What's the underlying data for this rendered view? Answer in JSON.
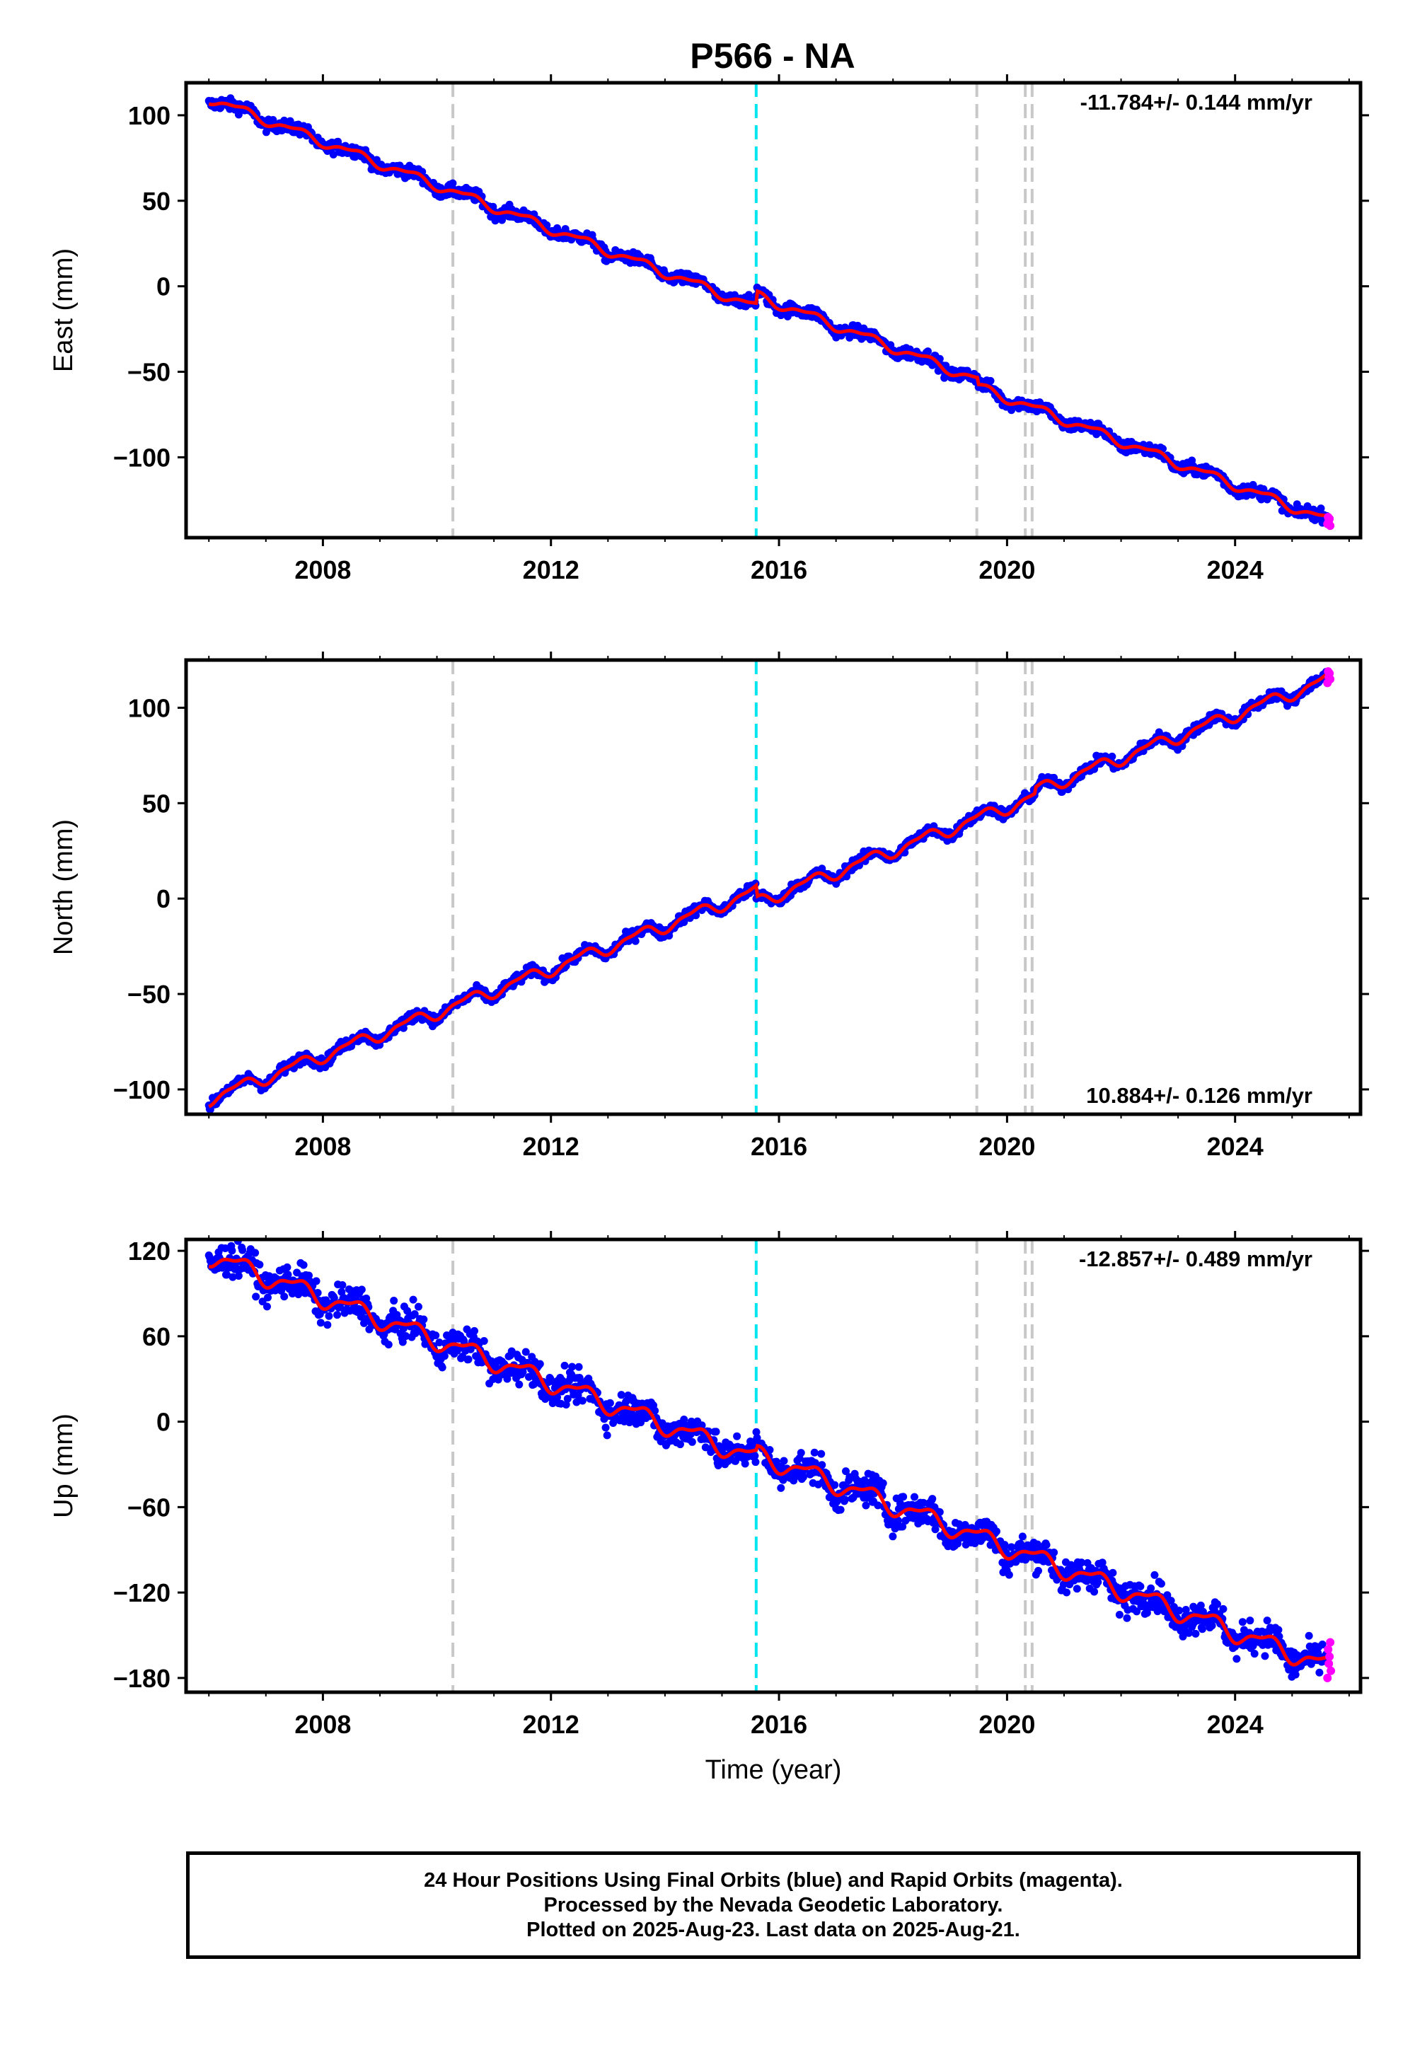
{
  "title": "P566 - NA",
  "colors": {
    "final_orbits": "#0000ff",
    "rapid_orbits": "#ff00ff",
    "model_fit": "#ff0000",
    "equipment_change": "#c8c8c8",
    "earthquake": "#00e5ee",
    "frame": "#000000"
  },
  "chart_data": [
    {
      "type": "scatter",
      "name": "East",
      "ylabel": "East (mm)",
      "xlabel": "",
      "xlim": [
        2005.6,
        2026.2
      ],
      "ylim": [
        -147,
        119
      ],
      "yticks": [
        100,
        50,
        0,
        -50,
        -100
      ],
      "xticks": [
        2008,
        2012,
        2016,
        2020,
        2024
      ],
      "rate_label": "-11.784+/- 0.144 mm/yr",
      "rate_position": "top-right",
      "start": [
        2006.0,
        110
      ],
      "end": [
        2025.64,
        -137
      ],
      "offsets": [
        {
          "x": 2015.6,
          "dy": 7
        },
        {
          "x": 2019.5,
          "dy": -4
        }
      ],
      "seasonal_amplitude": 2.5,
      "scatter_spread": 2.5,
      "rapid_points": [
        -139,
        -135,
        -137,
        -136,
        -140
      ]
    },
    {
      "type": "scatter",
      "name": "North",
      "ylabel": "North (mm)",
      "xlabel": "",
      "xlim": [
        2005.6,
        2026.2
      ],
      "ylim": [
        -113,
        125
      ],
      "yticks": [
        100,
        50,
        0,
        -50,
        -100
      ],
      "xticks": [
        2008,
        2012,
        2016,
        2020,
        2024
      ],
      "rate_label": "10.884+/- 0.126 mm/yr",
      "rate_position": "bottom-right",
      "start": [
        2006.0,
        -105
      ],
      "end": [
        2025.64,
        115
      ],
      "offsets": [
        {
          "x": 2015.6,
          "dy": -6
        },
        {
          "x": 2020.5,
          "dy": 3
        }
      ],
      "seasonal_amplitude": 3,
      "scatter_spread": 2,
      "rapid_points": [
        113,
        119,
        116,
        118,
        115
      ]
    },
    {
      "type": "scatter",
      "name": "Up",
      "ylabel": "Up (mm)",
      "xlabel": "Time (year)",
      "xlim": [
        2005.6,
        2026.2
      ],
      "ylim": [
        -190,
        128
      ],
      "yticks": [
        120,
        60,
        0,
        -60,
        -120,
        -180
      ],
      "xticks": [
        2008,
        2012,
        2016,
        2020,
        2024
      ],
      "rate_label": "-12.857+/- 0.489 mm/yr",
      "rate_position": "top-right",
      "start": [
        2006.0,
        117
      ],
      "end": [
        2025.64,
        -172
      ],
      "offsets": [
        {
          "x": 2015.6,
          "dy": 3
        }
      ],
      "seasonal_amplitude": 6,
      "scatter_spread": 8,
      "rapid_points": [
        -180,
        -160,
        -170,
        -165,
        -155,
        -175
      ]
    }
  ],
  "event_lines": {
    "equipment_changes": [
      2010.28,
      2019.47,
      2020.32,
      2020.44
    ],
    "earthquakes": [
      2015.6
    ]
  },
  "footer": {
    "line1": "24 Hour Positions Using Final Orbits (blue) and Rapid Orbits (magenta).",
    "line2": "Processed by the Nevada Geodetic Laboratory.",
    "line3": "Plotted on 2025-Aug-23. Last data on 2025-Aug-21."
  }
}
